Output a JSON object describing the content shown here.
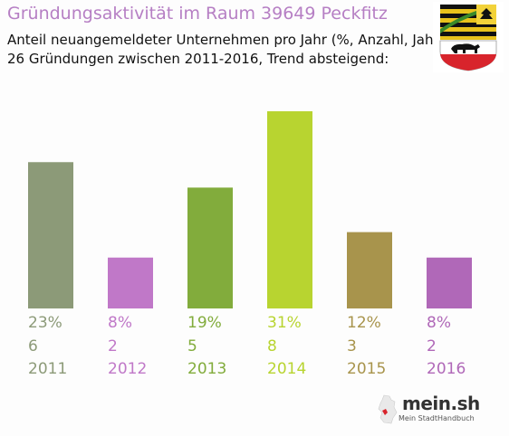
{
  "title": "Gründungsaktivität im Raum 39649 Peckfitz",
  "subtitle_line1": "Anteil neuangemeldeter Unternehmen pro Jahr (%, Anzahl, Jahr)",
  "subtitle_line2": "26 Gründungen zwischen 2011-2016, Trend absteigend:",
  "logo": {
    "name": "mein.sh",
    "tagline": "Mein StadtHandbuch"
  },
  "crest_icon": "saxony-anhalt-coat-of-arms-icon",
  "chart_data": {
    "type": "bar",
    "title": "Gründungsaktivität im Raum 39649 Peckfitz",
    "categories": [
      "2011",
      "2012",
      "2013",
      "2014",
      "2015",
      "2016"
    ],
    "values_percent": [
      23,
      8,
      19,
      31,
      12,
      8
    ],
    "percent_labels": [
      "23%",
      "8%",
      "19%",
      "31%",
      "12%",
      "8%"
    ],
    "counts": [
      "6",
      "2",
      "5",
      "8",
      "3",
      "2"
    ],
    "colors": [
      "#8c9a78",
      "#c078c8",
      "#82ac3c",
      "#b8d430",
      "#a8944c",
      "#b068b8"
    ],
    "total": 26,
    "ylim": [
      0,
      31
    ],
    "grid": false,
    "legend": "none"
  }
}
